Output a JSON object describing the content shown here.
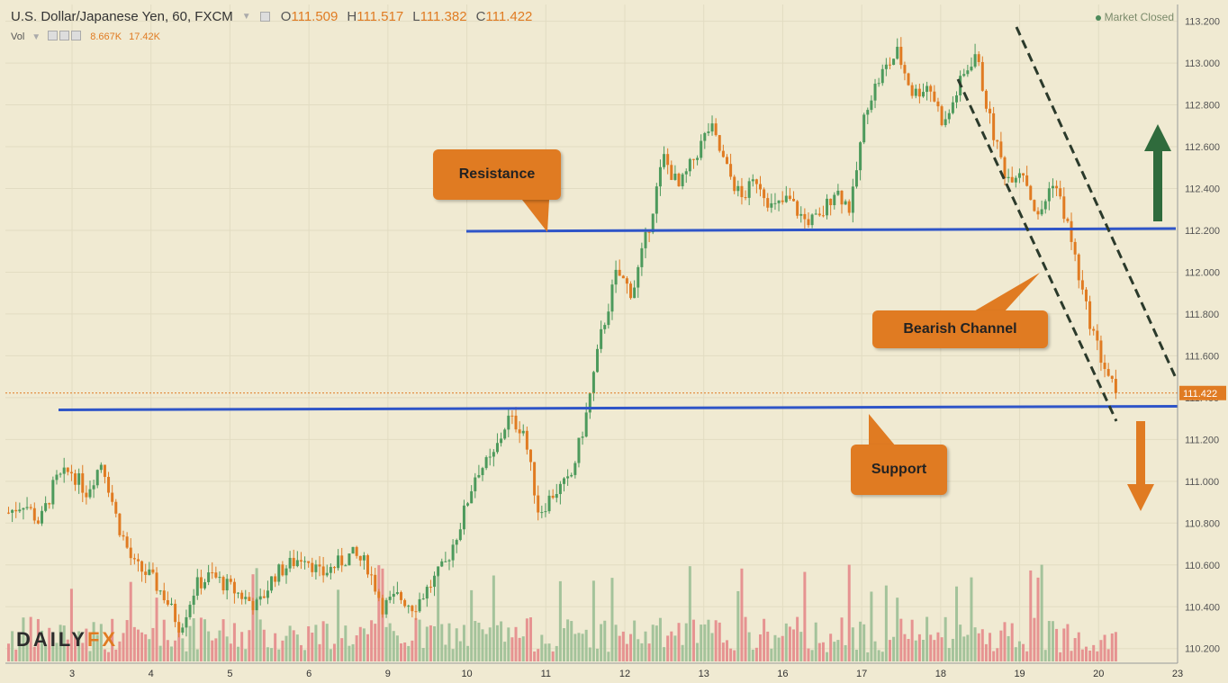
{
  "header": {
    "symbol": "U.S. Dollar/Japanese Yen, 60, FXCM",
    "open_label": "O",
    "open": "111.509",
    "high_label": "H",
    "high": "111.517",
    "low_label": "L",
    "low": "111.382",
    "close_label": "C",
    "close": "111.422"
  },
  "volume": {
    "label": "Vol",
    "v1": "8.667K",
    "v2": "17.42K"
  },
  "status": "Market Closed",
  "logo": {
    "part1": "DAILY",
    "part2": "FX"
  },
  "annotations": {
    "resistance": "Resistance",
    "bearish": "Bearish Channel",
    "support": "Support"
  },
  "colors": {
    "up": "#4d9a5c",
    "down": "#e07b22",
    "level": "#2f55c8",
    "channel": "#2b3a2b",
    "vol_up": "#9bbf95",
    "vol_down": "#e48a8a"
  },
  "chart_data": {
    "type": "candlestick",
    "ylim": [
      110.13,
      113.28
    ],
    "y_ticks": [
      "113.200",
      "113.000",
      "112.800",
      "112.600",
      "112.400",
      "112.200",
      "112.000",
      "111.800",
      "111.600",
      "111.400",
      "111.200",
      "111.000",
      "110.800",
      "110.600",
      "110.400",
      "110.200"
    ],
    "x_ticks": [
      "3",
      "4",
      "5",
      "6",
      "9",
      "10",
      "11",
      "12",
      "13",
      "16",
      "17",
      "18",
      "19",
      "20",
      "23"
    ],
    "last_price": "111.422",
    "last_price_value": 111.422,
    "resistance_level": 112.2,
    "support_level": 111.35,
    "close_path": [
      110.85,
      110.9,
      110.8,
      111.0,
      111.05,
      110.95,
      111.1,
      110.8,
      110.6,
      110.55,
      110.45,
      110.3,
      110.5,
      110.55,
      110.5,
      110.45,
      110.4,
      110.55,
      110.6,
      110.65,
      110.55,
      110.6,
      110.65,
      110.6,
      110.4,
      110.45,
      110.4,
      110.5,
      110.6,
      110.8,
      111.05,
      111.1,
      111.3,
      111.25,
      110.85,
      110.95,
      111.0,
      111.3,
      111.7,
      112.0,
      111.9,
      112.2,
      112.55,
      112.4,
      112.55,
      112.7,
      112.5,
      112.35,
      112.45,
      112.3,
      112.35,
      112.25,
      112.25,
      112.4,
      112.3,
      112.8,
      112.95,
      113.05,
      112.85,
      112.9,
      112.7,
      112.9,
      113.05,
      112.7,
      112.45,
      112.5,
      112.25,
      112.45,
      112.2,
      111.85,
      111.6,
      111.42
    ]
  }
}
